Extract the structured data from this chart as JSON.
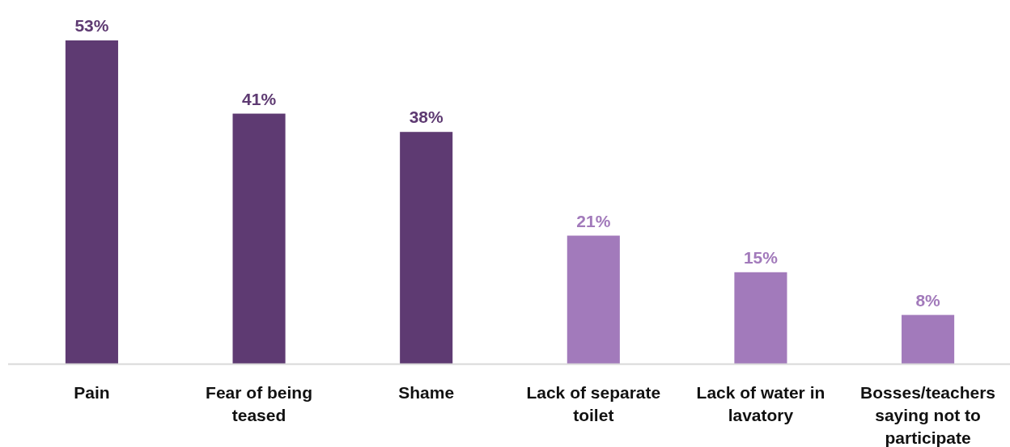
{
  "chart_data": {
    "type": "bar",
    "categories": [
      "Pain",
      "Fear of being teased",
      "Shame",
      "Lack of separate toilet",
      "Lack of water in lavatory",
      "Bosses/teachers saying not to participate"
    ],
    "values": [
      53,
      41,
      38,
      21,
      15,
      8
    ],
    "colors": [
      "#5e3a72",
      "#5e3a72",
      "#5e3a72",
      "#a27abb",
      "#a27abb",
      "#a27abb"
    ],
    "value_labels": [
      "53%",
      "41%",
      "38%",
      "21%",
      "15%",
      "8%"
    ]
  }
}
